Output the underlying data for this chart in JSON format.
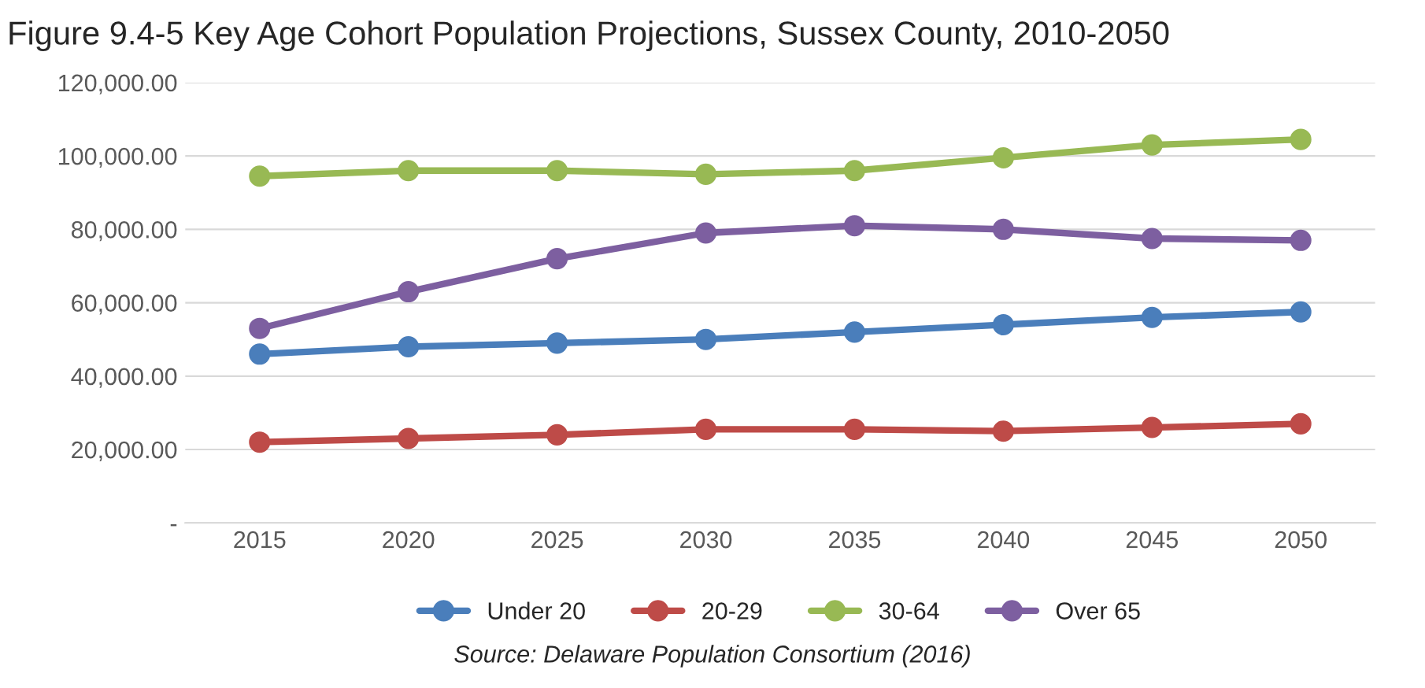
{
  "chart_data": {
    "type": "line",
    "title": "Figure 9.4-5 Key Age Cohort Population Projections, Sussex County, 2010-2050",
    "categories": [
      "2015",
      "2020",
      "2025",
      "2030",
      "2035",
      "2040",
      "2045",
      "2050"
    ],
    "series": [
      {
        "name": "Under 20",
        "color": "#4a7ebb",
        "values": [
          46000,
          48000,
          49000,
          50000,
          52000,
          54000,
          56000,
          57500
        ]
      },
      {
        "name": "20-29",
        "color": "#be4b48",
        "values": [
          22000,
          23000,
          24000,
          25500,
          25500,
          25000,
          26000,
          27000
        ]
      },
      {
        "name": "30-64",
        "color": "#98b954",
        "values": [
          94500,
          96000,
          96000,
          95000,
          96000,
          99500,
          103000,
          104500
        ]
      },
      {
        "name": "Over 65",
        "color": "#7d5fa0",
        "values": [
          53000,
          63000,
          72000,
          79000,
          81000,
          80000,
          77500,
          77000
        ]
      }
    ],
    "ylim": [
      0,
      120000
    ],
    "yticks": [
      {
        "value": 0,
        "label": "-"
      },
      {
        "value": 20000,
        "label": "20,000.00"
      },
      {
        "value": 40000,
        "label": "40,000.00"
      },
      {
        "value": 60000,
        "label": "60,000.00"
      },
      {
        "value": 80000,
        "label": "80,000.00"
      },
      {
        "value": 100000,
        "label": "100,000.00"
      },
      {
        "value": 120000,
        "label": "120,000.00"
      }
    ],
    "grid": "y",
    "legend": "bottom",
    "marker": "circle",
    "line_style": "solid",
    "annotations": [
      "Source: Delaware Population Consortium (2016)"
    ]
  }
}
